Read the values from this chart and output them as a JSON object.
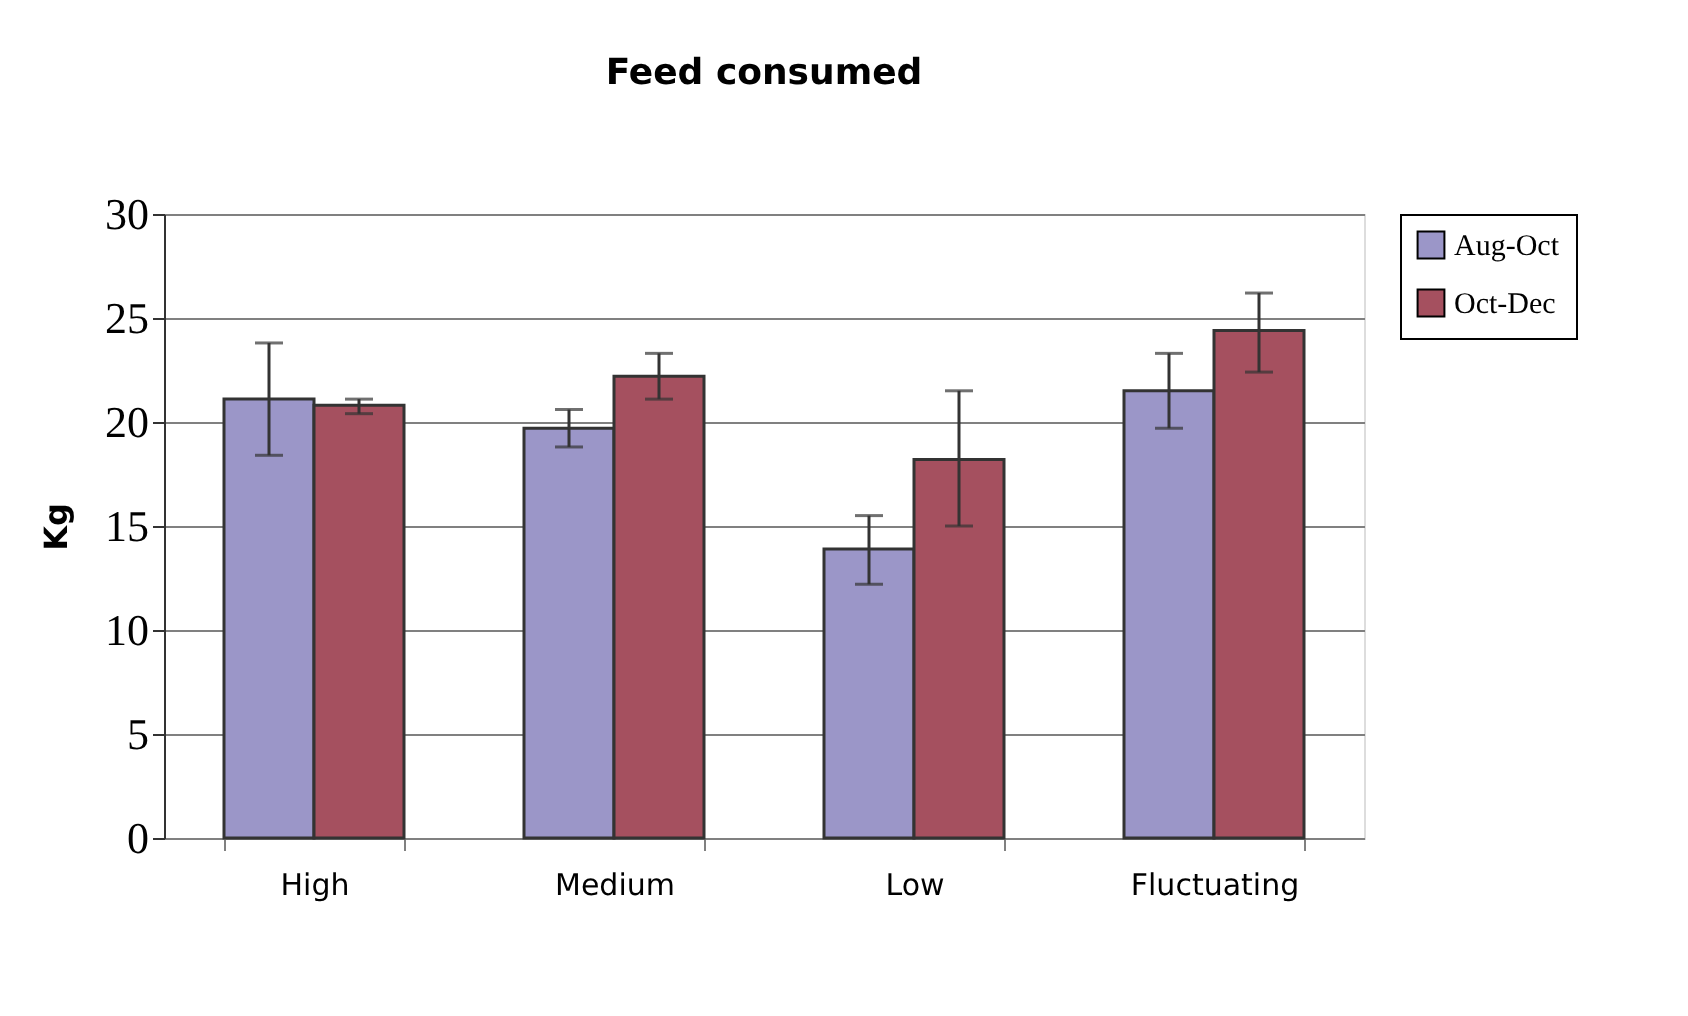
{
  "chart_data": {
    "type": "bar",
    "title": "Feed consumed",
    "ylabel": "Kg",
    "categories": [
      "High",
      "Medium",
      "Low",
      "Fluctuating"
    ],
    "series": [
      {
        "name": "Aug-Oct",
        "color": "#9b96c8",
        "values": [
          21.1,
          19.7,
          13.9,
          21.5
        ],
        "errors": [
          [
            18.4,
            23.8
          ],
          [
            18.8,
            20.6
          ],
          [
            12.2,
            15.5
          ],
          [
            19.7,
            23.3
          ]
        ]
      },
      {
        "name": "Oct-Dec",
        "color": "#a5505f",
        "values": [
          20.8,
          22.2,
          18.2,
          24.4
        ],
        "errors": [
          [
            20.4,
            21.1
          ],
          [
            21.1,
            23.3
          ],
          [
            15.0,
            21.5
          ],
          [
            22.4,
            26.2
          ]
        ]
      }
    ],
    "ylim": [
      0,
      30
    ],
    "yticks": [
      0,
      5,
      10,
      15,
      20,
      25,
      30
    ],
    "grid": "y",
    "legend": "right"
  }
}
